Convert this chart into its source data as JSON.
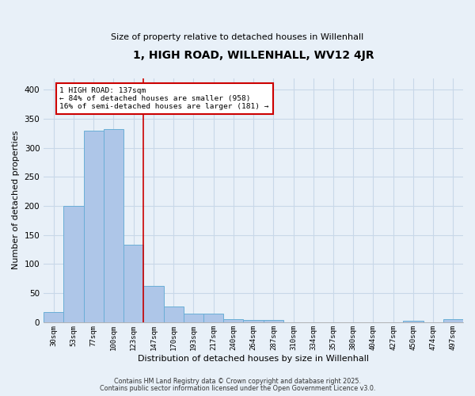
{
  "title": "1, HIGH ROAD, WILLENHALL, WV12 4JR",
  "subtitle": "Size of property relative to detached houses in Willenhall",
  "xlabel": "Distribution of detached houses by size in Willenhall",
  "ylabel": "Number of detached properties",
  "bar_labels": [
    "30sqm",
    "53sqm",
    "77sqm",
    "100sqm",
    "123sqm",
    "147sqm",
    "170sqm",
    "193sqm",
    "217sqm",
    "240sqm",
    "264sqm",
    "287sqm",
    "310sqm",
    "334sqm",
    "357sqm",
    "380sqm",
    "404sqm",
    "427sqm",
    "450sqm",
    "474sqm",
    "497sqm"
  ],
  "bar_values": [
    18,
    200,
    330,
    332,
    133,
    63,
    27,
    15,
    15,
    6,
    4,
    4,
    0,
    0,
    0,
    0,
    0,
    0,
    3,
    0,
    5
  ],
  "bar_color": "#aec6e8",
  "bar_edgecolor": "#6aaed6",
  "annotation_text_line1": "1 HIGH ROAD: 137sqm",
  "annotation_text_line2": "← 84% of detached houses are smaller (958)",
  "annotation_text_line3": "16% of semi-detached houses are larger (181) →",
  "annotation_box_color": "#ffffff",
  "annotation_box_edgecolor": "#cc0000",
  "vline_color": "#cc0000",
  "vline_x": 4.5,
  "ylim": [
    0,
    420
  ],
  "yticks": [
    0,
    50,
    100,
    150,
    200,
    250,
    300,
    350,
    400
  ],
  "grid_color": "#c8d8e8",
  "background_color": "#e8f0f8",
  "footnote_line1": "Contains HM Land Registry data © Crown copyright and database right 2025.",
  "footnote_line2": "Contains public sector information licensed under the Open Government Licence v3.0."
}
